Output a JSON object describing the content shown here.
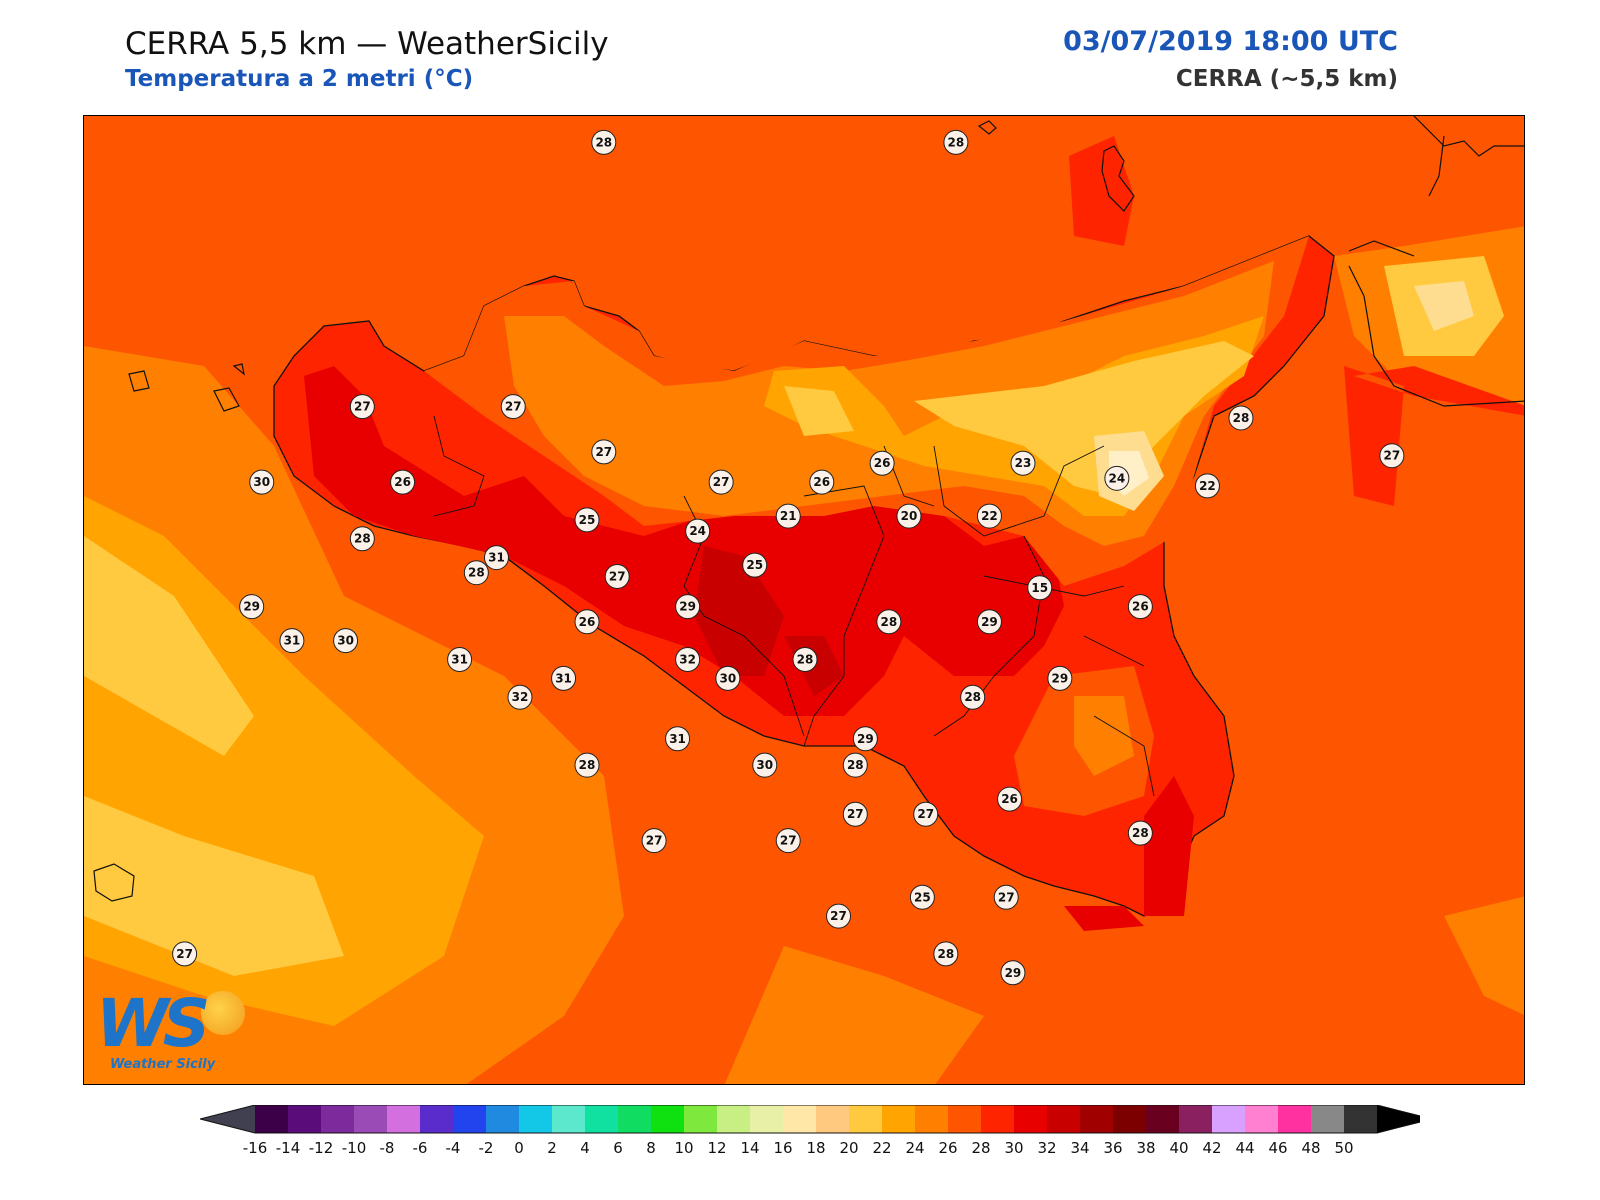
{
  "header": {
    "title": "CERRA 5,5 km — WeatherSicily",
    "subtitle": "Temperatura a 2 metri (°C)",
    "datetime": "03/07/2019 18:00 UTC",
    "model": "CERRA (~5,5 km)"
  },
  "logo": {
    "mark": "WS",
    "name": "Weather Sicily"
  },
  "colors": {
    "bg_sea": "#fe5500",
    "bands": {
      "20": "#ffc940",
      "22": "#ffa400",
      "24": "#ff7f00",
      "26": "#fe5500",
      "28": "#ff2400",
      "30": "#e80000",
      "32": "#c80000",
      "18": "#ffdd90",
      "16": "#fff0c8"
    }
  },
  "stations": [
    {
      "v": "28",
      "lon": 13.2,
      "lat": 38.85
    },
    {
      "v": "28",
      "lon": 14.25,
      "lat": 38.85
    },
    {
      "v": "28",
      "lon": 15.1,
      "lat": 38.12
    },
    {
      "v": "27",
      "lon": 15.55,
      "lat": 38.02
    },
    {
      "v": "27",
      "lon": 12.48,
      "lat": 38.15
    },
    {
      "v": "27",
      "lon": 12.93,
      "lat": 38.15
    },
    {
      "v": "27",
      "lon": 13.2,
      "lat": 38.03
    },
    {
      "v": "27",
      "lon": 13.55,
      "lat": 37.95
    },
    {
      "v": "30",
      "lon": 12.18,
      "lat": 37.95
    },
    {
      "v": "26",
      "lon": 12.6,
      "lat": 37.95
    },
    {
      "v": "26",
      "lon": 14.03,
      "lat": 38.0
    },
    {
      "v": "23",
      "lon": 14.45,
      "lat": 38.0
    },
    {
      "v": "24",
      "lon": 14.73,
      "lat": 37.96
    },
    {
      "v": "22",
      "lon": 15.0,
      "lat": 37.94
    },
    {
      "v": "26",
      "lon": 13.85,
      "lat": 37.95
    },
    {
      "v": "25",
      "lon": 13.15,
      "lat": 37.85
    },
    {
      "v": "24",
      "lon": 13.48,
      "lat": 37.82
    },
    {
      "v": "21",
      "lon": 13.75,
      "lat": 37.86
    },
    {
      "v": "20",
      "lon": 14.11,
      "lat": 37.86
    },
    {
      "v": "22",
      "lon": 14.35,
      "lat": 37.86
    },
    {
      "v": "28",
      "lon": 12.48,
      "lat": 37.8
    },
    {
      "v": "31",
      "lon": 12.88,
      "lat": 37.75
    },
    {
      "v": "25",
      "lon": 13.65,
      "lat": 37.73
    },
    {
      "v": "27",
      "lon": 13.24,
      "lat": 37.7
    },
    {
      "v": "28",
      "lon": 12.82,
      "lat": 37.71
    },
    {
      "v": "15",
      "lon": 14.5,
      "lat": 37.67
    },
    {
      "v": "26",
      "lon": 14.8,
      "lat": 37.62
    },
    {
      "v": "29",
      "lon": 12.15,
      "lat": 37.62
    },
    {
      "v": "29",
      "lon": 13.45,
      "lat": 37.62
    },
    {
      "v": "28",
      "lon": 14.05,
      "lat": 37.58
    },
    {
      "v": "29",
      "lon": 14.35,
      "lat": 37.58
    },
    {
      "v": "26",
      "lon": 13.15,
      "lat": 37.58
    },
    {
      "v": "31",
      "lon": 12.27,
      "lat": 37.53
    },
    {
      "v": "30",
      "lon": 12.43,
      "lat": 37.53
    },
    {
      "v": "31",
      "lon": 12.77,
      "lat": 37.48
    },
    {
      "v": "32",
      "lon": 13.45,
      "lat": 37.48
    },
    {
      "v": "28",
      "lon": 13.8,
      "lat": 37.48
    },
    {
      "v": "31",
      "lon": 13.08,
      "lat": 37.43
    },
    {
      "v": "30",
      "lon": 13.57,
      "lat": 37.43
    },
    {
      "v": "29",
      "lon": 14.56,
      "lat": 37.43
    },
    {
      "v": "32",
      "lon": 12.95,
      "lat": 37.38
    },
    {
      "v": "28",
      "lon": 14.3,
      "lat": 37.38
    },
    {
      "v": "31",
      "lon": 13.42,
      "lat": 37.27
    },
    {
      "v": "29",
      "lon": 13.98,
      "lat": 37.27
    },
    {
      "v": "28",
      "lon": 13.15,
      "lat": 37.2
    },
    {
      "v": "30",
      "lon": 13.68,
      "lat": 37.2
    },
    {
      "v": "28",
      "lon": 13.95,
      "lat": 37.2
    },
    {
      "v": "26",
      "lon": 14.41,
      "lat": 37.11
    },
    {
      "v": "27",
      "lon": 13.95,
      "lat": 37.07
    },
    {
      "v": "27",
      "lon": 14.16,
      "lat": 37.07
    },
    {
      "v": "28",
      "lon": 14.8,
      "lat": 37.02
    },
    {
      "v": "27",
      "lon": 13.35,
      "lat": 37.0
    },
    {
      "v": "27",
      "lon": 13.75,
      "lat": 37.0
    },
    {
      "v": "25",
      "lon": 14.15,
      "lat": 36.85
    },
    {
      "v": "27",
      "lon": 14.4,
      "lat": 36.85
    },
    {
      "v": "27",
      "lon": 13.9,
      "lat": 36.8
    },
    {
      "v": "28",
      "lon": 14.22,
      "lat": 36.7
    },
    {
      "v": "29",
      "lon": 14.42,
      "lat": 36.65
    },
    {
      "v": "27",
      "lon": 11.95,
      "lat": 36.7
    }
  ],
  "colorbar": {
    "ticks": [
      "-16",
      "-14",
      "-12",
      "-10",
      "-8",
      "-6",
      "-4",
      "-2",
      "0",
      "2",
      "4",
      "6",
      "8",
      "10",
      "12",
      "14",
      "16",
      "18",
      "20",
      "22",
      "24",
      "26",
      "28",
      "30",
      "32",
      "34",
      "36",
      "38",
      "40",
      "42",
      "44",
      "46",
      "48",
      "50"
    ],
    "colors": [
      "#3b0047",
      "#5a0d7a",
      "#7d2a9c",
      "#9a4bb6",
      "#d46fe0",
      "#5b2ccc",
      "#2244ee",
      "#1f8ae0",
      "#12c8e6",
      "#5be8cc",
      "#10e0a0",
      "#0fdc60",
      "#0fe010",
      "#7fe83c",
      "#c7ef84",
      "#e8f0a8",
      "#ffe7a8",
      "#ffca80",
      "#ffc940",
      "#ffa400",
      "#ff7f00",
      "#fe5500",
      "#ff2400",
      "#e80000",
      "#c80000",
      "#a00000",
      "#7d0000",
      "#6a0020",
      "#8a2060",
      "#d8a0ff",
      "#ff7fd0",
      "#ff30a0",
      "#888888",
      "#333333"
    ]
  }
}
